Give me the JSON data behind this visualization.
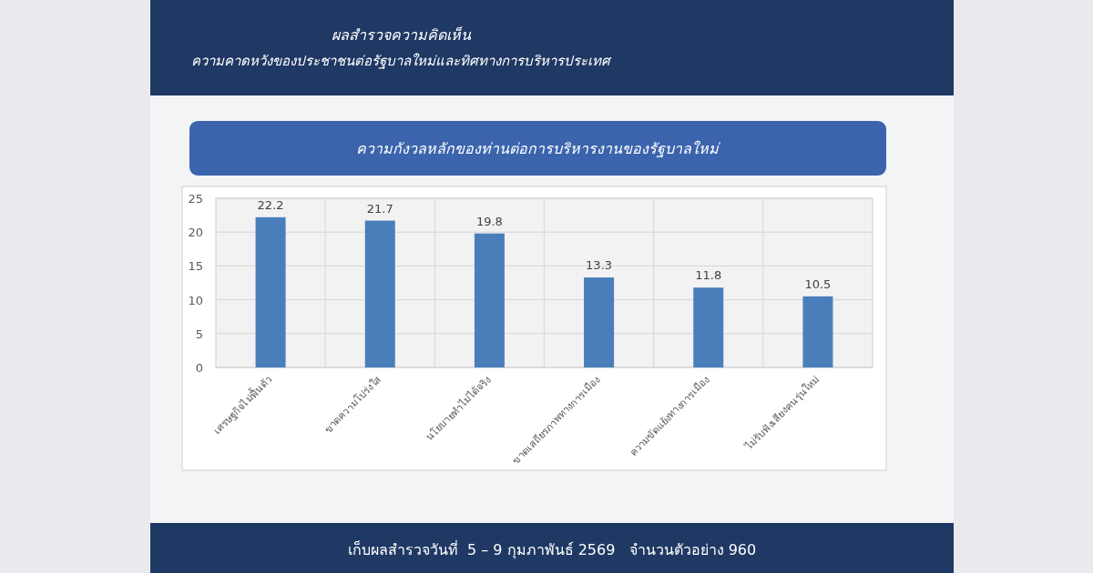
{
  "chart_data": {
    "type": "bar",
    "title": "ผลสำรวจความคิดเห็น",
    "subtitle": "ความคาดหวังของประชาชนต่อรัฐบาลใหม่และทิศทางการบริหารประเทศ",
    "annotations": [
      "ความกังวลหลักของท่านต่อการบริหารงานของรัฐบาลใหม่",
      "เก็บผลสำรวจวันที่  5 – 9 กุมภาพันธ์ 2569   จำนวนตัวอย่าง 960"
    ],
    "categories": [
      "เศรษฐกิจไม่ฟื้นตัว",
      "ขาดความโปร่งใส",
      "นโยบายทำไม่ได้จริง",
      "ขาดเสถียรภาพทางการเมือง",
      "ความขัดแย้งทางการเมือง",
      "ไม่รับฟังเสียงคนรุ่นใหม่"
    ],
    "values": [
      22.2,
      21.7,
      19.8,
      13.3,
      11.8,
      10.5
    ],
    "color": "#4a7ebb",
    "ylim": [
      0,
      25
    ],
    "yticks": [
      0,
      5,
      10,
      15,
      20,
      25
    ],
    "grid": true,
    "data_labels": true
  }
}
